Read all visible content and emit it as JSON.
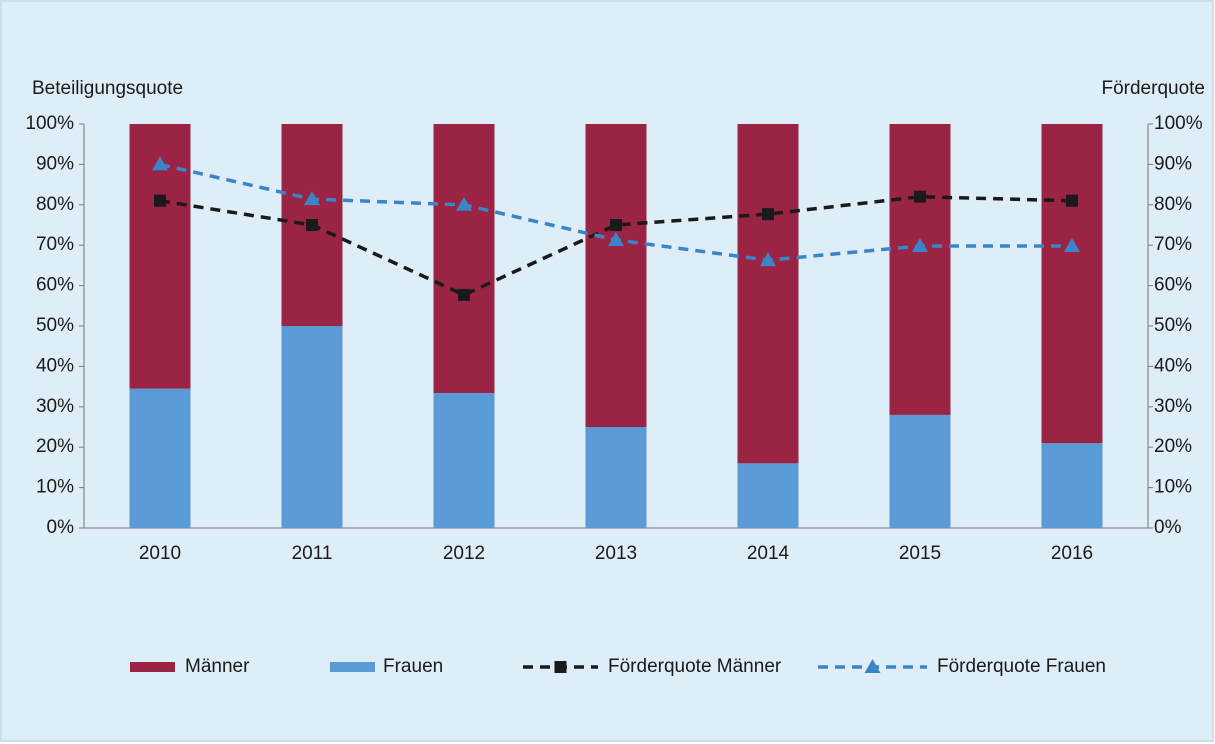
{
  "chart_data": {
    "type": "bar",
    "stacked": true,
    "ylabel": "Beteiligungsquote",
    "y2label": "Förderquote",
    "categories": [
      "2010",
      "2011",
      "2012",
      "2013",
      "2014",
      "2015",
      "2016"
    ],
    "series": [
      {
        "name": "Männer",
        "type": "bar",
        "color": "#9b2343",
        "values": [
          65.5,
          50,
          66.6,
          75,
          84,
          72,
          79
        ],
        "stack_order": 1
      },
      {
        "name": "Frauen",
        "type": "bar",
        "color": "#5b9bd5",
        "values": [
          34.5,
          50,
          33.4,
          25,
          16,
          28,
          21
        ],
        "stack_order": 0
      },
      {
        "name": "Förderquote Männer",
        "type": "line",
        "axis": "y2",
        "marker": "square",
        "color": "#1a1a1a",
        "values": [
          81,
          75,
          57.7,
          75,
          77.7,
          82,
          81
        ]
      },
      {
        "name": "Förderquote Frauen",
        "type": "line",
        "axis": "y2",
        "marker": "triangle",
        "color": "#3a85c8",
        "values": [
          90,
          81.4,
          80,
          71.3,
          66.3,
          69.8,
          69.8
        ]
      }
    ],
    "ylim": [
      0,
      100
    ],
    "yticks": [
      {
        "value": 0,
        "label": "0%"
      },
      {
        "value": 10,
        "label": "10%"
      },
      {
        "value": 20,
        "label": "20%"
      },
      {
        "value": 30,
        "label": "30%"
      },
      {
        "value": 40,
        "label": "40%"
      },
      {
        "value": 50,
        "label": "50%"
      },
      {
        "value": 60,
        "label": "60%"
      },
      {
        "value": 70,
        "label": "70%"
      },
      {
        "value": 80,
        "label": "80%"
      },
      {
        "value": 90,
        "label": "90%"
      },
      {
        "value": 100,
        "label": "100%"
      }
    ],
    "y2lim": [
      0,
      100
    ],
    "y2ticks": [
      {
        "value": 0,
        "label": "0%"
      },
      {
        "value": 10,
        "label": "10%"
      },
      {
        "value": 20,
        "label": "20%"
      },
      {
        "value": 30,
        "label": "30%"
      },
      {
        "value": 40,
        "label": "40%"
      },
      {
        "value": 50,
        "label": "50%"
      },
      {
        "value": 60,
        "label": "60%"
      },
      {
        "value": 70,
        "label": "70%"
      },
      {
        "value": 80,
        "label": "80%"
      },
      {
        "value": 90,
        "label": "90%"
      },
      {
        "value": 100,
        "label": "100%"
      }
    ],
    "legend": "bottom"
  }
}
